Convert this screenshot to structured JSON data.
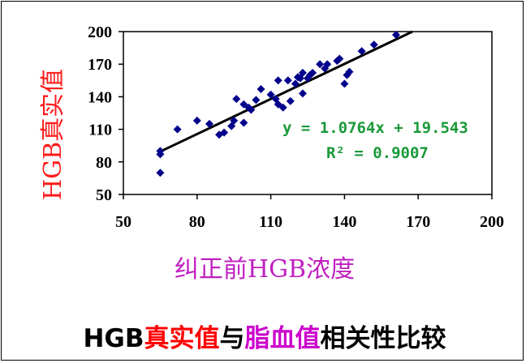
{
  "colors": {
    "marker": "#00008b",
    "trend": "#000000",
    "equation": "#1a9a3a",
    "ylabel": "#ff1a1a",
    "xlabel": "#c020c0",
    "caption_red": "#ff0000",
    "caption_purple": "#cc00cc"
  },
  "chart_data": {
    "type": "scatter",
    "xlabel": "纠正前HGB浓度",
    "ylabel": "HGB真实值",
    "xlim": [
      50,
      200
    ],
    "ylim": [
      50,
      200
    ],
    "xticks": [
      "50",
      "80",
      "110",
      "140",
      "170",
      "200"
    ],
    "yticks": [
      "50",
      "80",
      "110",
      "140",
      "170",
      "200"
    ],
    "grid": false,
    "trendline": {
      "slope": 1.0764,
      "intercept": 19.543
    },
    "equation": "y = 1.0764x + 19.543",
    "r2_label": "R² = 0.9007",
    "points": [
      [
        65,
        70
      ],
      [
        65,
        87
      ],
      [
        65,
        90
      ],
      [
        72,
        110
      ],
      [
        80,
        118
      ],
      [
        85,
        115
      ],
      [
        89,
        105
      ],
      [
        91,
        107
      ],
      [
        94,
        113
      ],
      [
        95,
        118
      ],
      [
        96,
        138
      ],
      [
        99,
        133
      ],
      [
        99,
        116
      ],
      [
        101,
        130
      ],
      [
        102,
        128
      ],
      [
        104,
        137
      ],
      [
        106,
        147
      ],
      [
        110,
        142
      ],
      [
        112,
        138
      ],
      [
        113,
        133
      ],
      [
        113,
        155
      ],
      [
        115,
        130
      ],
      [
        117,
        155
      ],
      [
        118,
        136
      ],
      [
        120,
        152
      ],
      [
        121,
        158
      ],
      [
        122,
        157
      ],
      [
        123,
        143
      ],
      [
        123,
        162
      ],
      [
        125,
        157
      ],
      [
        126,
        160
      ],
      [
        127,
        162
      ],
      [
        130,
        170
      ],
      [
        132,
        166
      ],
      [
        133,
        170
      ],
      [
        137,
        173
      ],
      [
        138,
        175
      ],
      [
        140,
        152
      ],
      [
        141,
        160
      ],
      [
        142,
        163
      ],
      [
        147,
        182
      ],
      [
        152,
        188
      ],
      [
        161,
        197
      ]
    ]
  },
  "caption": {
    "part1": "HGB",
    "part2": "真实值",
    "part3": "与",
    "part4": "脂血值",
    "part5": "相关性比较"
  }
}
